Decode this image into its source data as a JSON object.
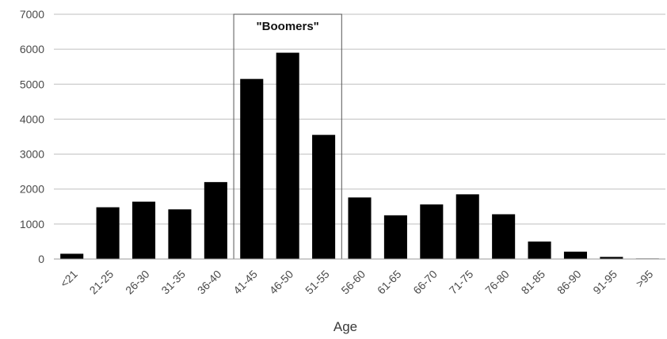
{
  "chart_data": {
    "type": "bar",
    "title": "",
    "xlabel": "Age",
    "ylabel": "",
    "categories": [
      "<21",
      "21-25",
      "26-30",
      "31-35",
      "36-40",
      "41-45",
      "46-50",
      "51-55",
      "56-60",
      "61-65",
      "66-70",
      "71-75",
      "76-80",
      "81-85",
      "86-90",
      "91-95",
      ">95"
    ],
    "values": [
      150,
      1480,
      1640,
      1420,
      2200,
      5150,
      5900,
      3550,
      1760,
      1250,
      1560,
      1850,
      1280,
      500,
      210,
      60,
      15
    ],
    "ylim": [
      0,
      7000
    ],
    "yticks": [
      0,
      1000,
      2000,
      3000,
      4000,
      5000,
      6000,
      7000
    ],
    "grid": true,
    "bar_color": "#000000",
    "grid_color": "#bfbfbf",
    "annotation": {
      "label": "\"Boomers\"",
      "span_categories": [
        "41-45",
        "51-55"
      ]
    }
  }
}
